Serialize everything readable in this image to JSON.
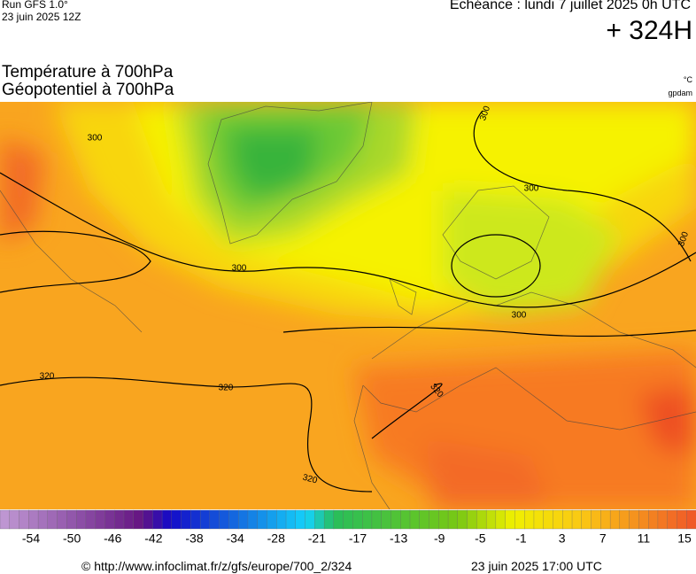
{
  "header": {
    "run": "Run GFS 1.0°",
    "run_date": "23 juin 2025 12Z",
    "valid": "Echéance : lundi 7 juillet 2025 0h UTC",
    "lead": "+ 324H",
    "title1": "Température à 700hPa",
    "title2": "Géopotentiel à 700hPa",
    "unit1": "°C",
    "unit2": "gpdam"
  },
  "contour_labels": [
    "300",
    "300",
    "300",
    "300",
    "300",
    "300",
    "320",
    "320",
    "320",
    "320"
  ],
  "colorbar": {
    "labels": [
      "-54",
      "-50",
      "-46",
      "-42",
      "-38",
      "-34",
      "-28",
      "-21",
      "-17",
      "-13",
      "-9",
      "-5",
      "-1",
      "3",
      "7",
      "11",
      "15"
    ]
  },
  "footer": {
    "source": "© http://www.infoclimat.fr/z/gfs/europe/700_2/324",
    "date": "23 juin 2025 17:00 UTC"
  }
}
